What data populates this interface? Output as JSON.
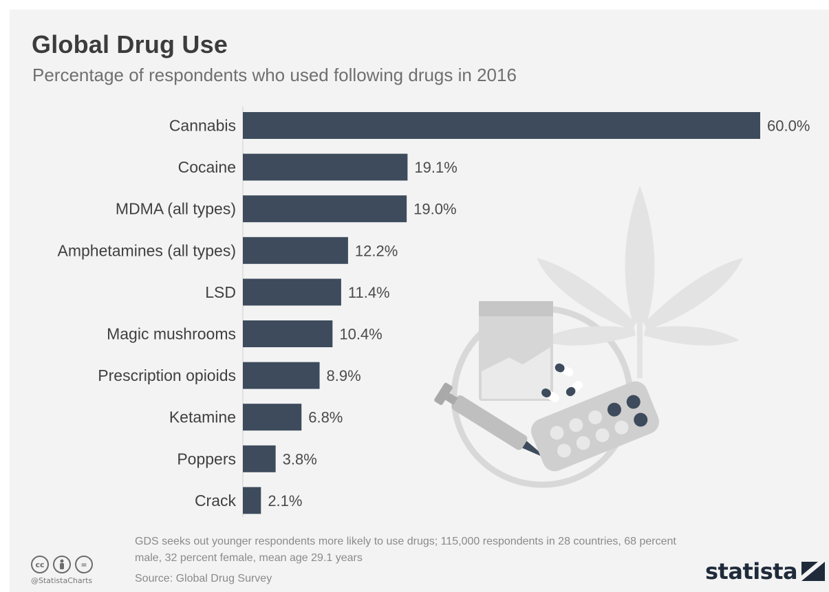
{
  "title": "Global Drug Use",
  "subtitle": "Percentage of respondents who used following drugs in 2016",
  "colors": {
    "bar": "#3d4b5c",
    "background": "#f3f3f3",
    "illustration": "#dcdcdc"
  },
  "chart_data": {
    "type": "bar",
    "orientation": "horizontal",
    "categories": [
      "Cannabis",
      "Cocaine",
      "MDMA (all types)",
      "Amphetamines (all types)",
      "LSD",
      "Magic mushrooms",
      "Prescription opioids",
      "Ketamine",
      "Poppers",
      "Crack"
    ],
    "values": [
      60.0,
      19.1,
      19.0,
      12.2,
      11.4,
      10.4,
      8.9,
      6.8,
      3.8,
      2.1
    ],
    "value_labels": [
      "60.0%",
      "19.1%",
      "19.0%",
      "12.2%",
      "11.4%",
      "10.4%",
      "8.9%",
      "6.8%",
      "3.8%",
      "2.1%"
    ],
    "xlim": [
      0,
      60
    ],
    "grid": false,
    "legend": "none"
  },
  "footer": {
    "note": "GDS seeks out younger respondents more likely to use drugs; 115,000 respondents in 28 countries, 68 percent male, 32 percent female, mean age 29.1 years",
    "source": "Source: Global Drug Survey",
    "handle": "@StatistaCharts",
    "brand": "statista",
    "license_icons": [
      "cc-icon",
      "attribution-icon",
      "no-derivatives-icon"
    ],
    "license_glyphs": [
      "cc",
      "Ⓘ",
      "="
    ]
  }
}
